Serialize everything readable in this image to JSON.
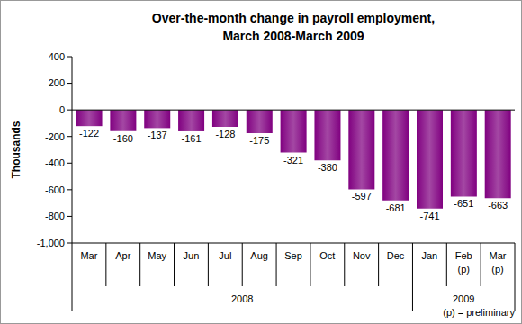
{
  "chart_data": {
    "type": "bar",
    "title": "Over-the-month change in payroll employment,",
    "subtitle": "March 2008-March 2009",
    "ylabel": "Thousands",
    "categories": [
      "Mar",
      "Apr",
      "May",
      "Jun",
      "Jul",
      "Aug",
      "Sep",
      "Oct",
      "Nov",
      "Dec",
      "Jan",
      "Feb (p)",
      "Mar (p)"
    ],
    "values": [
      -122,
      -160,
      -137,
      -161,
      -128,
      -175,
      -321,
      -380,
      -597,
      -681,
      -741,
      -651,
      -663
    ],
    "groups": [
      {
        "label": "2008",
        "size": 10
      },
      {
        "label": "2009",
        "size": 3
      }
    ],
    "note": "(p) = preliminary",
    "color": "#800080",
    "ylim": [
      -1000,
      400
    ],
    "yticks": [
      {
        "value": -1000,
        "label": "-1,000"
      },
      -800,
      -600,
      -400,
      -200,
      0,
      200,
      400
    ],
    "grid": false,
    "data_labels": true
  }
}
